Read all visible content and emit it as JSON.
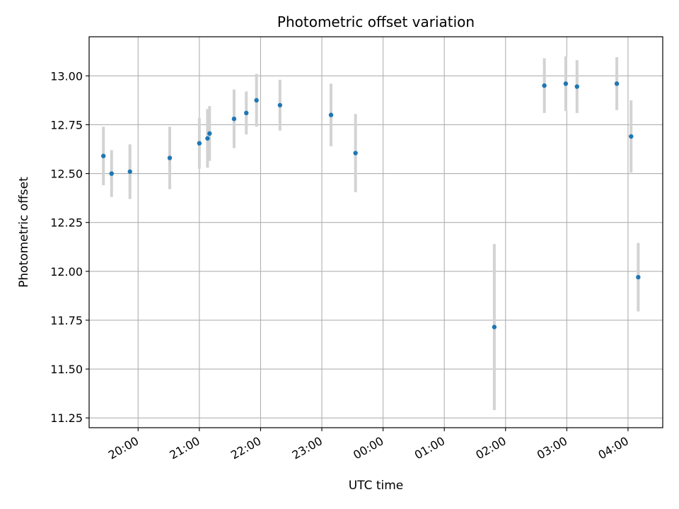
{
  "chart_data": {
    "type": "scatter",
    "title": "Photometric offset variation",
    "xlabel": "UTC time",
    "ylabel": "Photometric offset",
    "x_tick_labels": [
      "20:00",
      "21:00",
      "22:00",
      "23:00",
      "00:00",
      "01:00",
      "02:00",
      "03:00",
      "04:00"
    ],
    "y_tick_labels": [
      "11.25",
      "11.50",
      "11.75",
      "12.00",
      "12.25",
      "12.50",
      "12.75",
      "13.00"
    ],
    "ylim": [
      11.2,
      13.2
    ],
    "xlim": [
      "19:12",
      "04:34"
    ],
    "grid": true,
    "colors": {
      "marker": "#1f77b4",
      "errorbar": "#d3d3d3",
      "grid": "#b0b0b0"
    },
    "points": [
      {
        "x": "19:26",
        "y": 12.59,
        "err": 0.15
      },
      {
        "x": "19:34",
        "y": 12.5,
        "err": 0.12
      },
      {
        "x": "19:52",
        "y": 12.51,
        "err": 0.14
      },
      {
        "x": "20:31",
        "y": 12.58,
        "err": 0.16
      },
      {
        "x": "21:00",
        "y": 12.655,
        "err": 0.13
      },
      {
        "x": "21:08",
        "y": 12.68,
        "err": 0.15
      },
      {
        "x": "21:10",
        "y": 12.705,
        "err": 0.14
      },
      {
        "x": "21:34",
        "y": 12.78,
        "err": 0.15
      },
      {
        "x": "21:46",
        "y": 12.81,
        "err": 0.11
      },
      {
        "x": "21:56",
        "y": 12.875,
        "err": 0.135
      },
      {
        "x": "22:19",
        "y": 12.85,
        "err": 0.13
      },
      {
        "x": "23:09",
        "y": 12.8,
        "err": 0.16
      },
      {
        "x": "23:33",
        "y": 12.605,
        "err": 0.2
      },
      {
        "x": "01:49",
        "y": 11.715,
        "err": 0.425
      },
      {
        "x": "02:38",
        "y": 12.95,
        "err": 0.14
      },
      {
        "x": "02:59",
        "y": 12.96,
        "err": 0.14
      },
      {
        "x": "03:10",
        "y": 12.945,
        "err": 0.135
      },
      {
        "x": "03:49",
        "y": 12.96,
        "err": 0.135
      },
      {
        "x": "04:03",
        "y": 12.69,
        "err": 0.185
      },
      {
        "x": "04:10",
        "y": 11.97,
        "err": 0.175
      }
    ]
  }
}
